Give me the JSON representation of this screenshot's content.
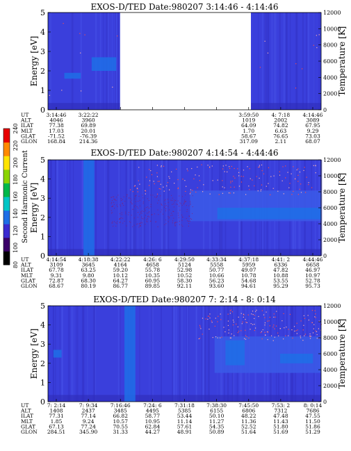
{
  "colorbar": {
    "label": "Second Harmonic Current",
    "ticks": [
      "80",
      "100",
      "120",
      "140",
      "160",
      "180",
      "200",
      "220",
      "240"
    ],
    "colors": [
      "#000000",
      "#3a0068",
      "#3b2bd0",
      "#1f6ee6",
      "#00c6c6",
      "#00b84a",
      "#8bd400",
      "#ffe400",
      "#ff8a00",
      "#e80000"
    ]
  },
  "chart_data": [
    {
      "type": "heatmap",
      "title": "EXOS-D/TED   Date:980207  3:14:46 - 4:14:46",
      "ylabel": "Energy [eV]",
      "y2label": "Temperature [K]",
      "ylim": [
        0,
        5
      ],
      "y2lim": [
        0,
        12000
      ],
      "yticks": [
        "0",
        "1",
        "2",
        "3",
        "4",
        "5"
      ],
      "y2ticks": [
        "0",
        "2000",
        "4000",
        "6000",
        "8000",
        "10000",
        "12000"
      ],
      "data_gaps": [
        [
          0.264,
          0.743
        ]
      ],
      "bands": [
        {
          "x0": 0.16,
          "x1": 0.25,
          "y0": 2.0,
          "y1": 2.7,
          "color": "#1f6ee6"
        },
        {
          "x0": 0.06,
          "x1": 0.12,
          "y0": 1.6,
          "y1": 1.9,
          "color": "#1f6ee6"
        }
      ],
      "table_rows": [
        {
          "label": "UT",
          "cells": [
            "3:14:46",
            "3:22:22",
            "",
            "",
            "",
            "",
            "3:59:50",
            "4: 7:18",
            "4:14:46"
          ]
        },
        {
          "label": "ALT",
          "cells": [
            "4046",
            "3960",
            "",
            "",
            "",
            "",
            "1019",
            "2002",
            "3089"
          ]
        },
        {
          "label": "ILAT",
          "cells": [
            "77.38",
            "69.89",
            "",
            "",
            "",
            "",
            "64.09",
            "74.82",
            "67.95"
          ]
        },
        {
          "label": "MLT",
          "cells": [
            "17.03",
            "20.01",
            "",
            "",
            "",
            "",
            "1.70",
            "6.63",
            "9.29"
          ]
        },
        {
          "label": "GLAT",
          "cells": [
            "-71.52",
            "-76.39",
            "",
            "",
            "",
            "",
            "58.67",
            "76.65",
            "73.03"
          ]
        },
        {
          "label": "GLON",
          "cells": [
            "168.84",
            "214.36",
            "",
            "",
            "",
            "",
            "317.09",
            "2.11",
            "68.07"
          ]
        }
      ]
    },
    {
      "type": "heatmap",
      "title": "EXOS-D/TED   Date:980207  4:14:54 - 4:44:46",
      "ylabel": "Energy [eV]",
      "y2label": "Temperature [K]",
      "ylim": [
        0,
        5
      ],
      "y2lim": [
        0,
        12000
      ],
      "yticks": [
        "0",
        "1",
        "2",
        "3",
        "4",
        "5"
      ],
      "y2ticks": [
        "0",
        "2000",
        "4000",
        "6000",
        "8000",
        "10000",
        "12000"
      ],
      "data_gaps": [],
      "bands": [
        {
          "x0": 0.13,
          "x1": 0.17,
          "y0": 0,
          "y1": 5,
          "color": "#1f6ee6"
        },
        {
          "x0": 0.52,
          "x1": 1.0,
          "y0": 1.8,
          "y1": 3.4,
          "color": "#3b5be8"
        },
        {
          "x0": 0.62,
          "x1": 1.0,
          "y0": 1.9,
          "y1": 2.5,
          "color": "#1f6ee6"
        }
      ],
      "table_rows": [
        {
          "label": "UT",
          "cells": [
            "4:14:54",
            "4:18:38",
            "4:22:22",
            "4:26: 6",
            "4:29:50",
            "4:33:34",
            "4:37:18",
            "4:41: 2",
            "4:44:46"
          ]
        },
        {
          "label": "ALT",
          "cells": [
            "3109",
            "3645",
            "4164",
            "4658",
            "5124",
            "5558",
            "5959",
            "6336",
            "6658"
          ]
        },
        {
          "label": "ILAT",
          "cells": [
            "67.78",
            "63.25",
            "59.20",
            "55.78",
            "52.98",
            "50.77",
            "49.07",
            "47.82",
            "46.97"
          ]
        },
        {
          "label": "MLT",
          "cells": [
            "9.31",
            "9.80",
            "10.12",
            "10.35",
            "10.52",
            "10.66",
            "10.78",
            "10.88",
            "10.97"
          ]
        },
        {
          "label": "GLAT",
          "cells": [
            "72.87",
            "68.30",
            "64.27",
            "60.95",
            "58.30",
            "56.23",
            "54.68",
            "53.55",
            "52.78"
          ]
        },
        {
          "label": "GLON",
          "cells": [
            "68.67",
            "80.19",
            "86.77",
            "89.85",
            "92.11",
            "93.60",
            "94.61",
            "95.29",
            "95.73"
          ]
        }
      ]
    },
    {
      "type": "heatmap",
      "title": "EXOS-D/TED   Date:980207  7: 2:14 - 8: 0:14",
      "ylabel": "Energy [eV]",
      "y2label": "Temperature [K]",
      "ylim": [
        0,
        5
      ],
      "y2lim": [
        0,
        12000
      ],
      "yticks": [
        "0",
        "1",
        "2",
        "3",
        "4",
        "5"
      ],
      "y2ticks": [
        "0",
        "2000",
        "4000",
        "6000",
        "8000",
        "10000",
        "12000"
      ],
      "data_gaps": [],
      "bands": [
        {
          "x0": 0.28,
          "x1": 0.32,
          "y0": 0,
          "y1": 5,
          "color": "#1f6ee6"
        },
        {
          "x0": 0.02,
          "x1": 0.05,
          "y0": 2.3,
          "y1": 2.7,
          "color": "#1f6ee6"
        },
        {
          "x0": 0.61,
          "x1": 1.0,
          "y0": 1.5,
          "y1": 3.4,
          "color": "#3b5be8"
        },
        {
          "x0": 0.65,
          "x1": 0.72,
          "y0": 1.9,
          "y1": 3.2,
          "color": "#1f6ee6"
        },
        {
          "x0": 0.85,
          "x1": 0.97,
          "y0": 2.0,
          "y1": 2.5,
          "color": "#1f6ee6"
        }
      ],
      "table_rows": [
        {
          "label": "UT",
          "cells": [
            "7: 2:14",
            "7: 9:34",
            "7:16:46",
            "7:24: 6",
            "7:31:18",
            "7:38:30",
            "7:45:50",
            "7:53: 2",
            "8: 0:14"
          ]
        },
        {
          "label": "ALT",
          "cells": [
            "1408",
            "2437",
            "3485",
            "4495",
            "5385",
            "6155",
            "6806",
            "7312",
            "7686"
          ]
        },
        {
          "label": "ILAT",
          "cells": [
            "77.31",
            "77.14",
            "66.82",
            "58.77",
            "53.44",
            "50.10",
            "48.22",
            "47.48",
            "47.55"
          ]
        },
        {
          "label": "MLT",
          "cells": [
            "1.85",
            "9.24",
            "10.57",
            "10.95",
            "11.14",
            "11.27",
            "11.36",
            "11.43",
            "11.50"
          ]
        },
        {
          "label": "GLAT",
          "cells": [
            "67.13",
            "77.24",
            "70.55",
            "62.84",
            "57.61",
            "54.35",
            "52.52",
            "51.80",
            "51.86"
          ]
        },
        {
          "label": "GLON",
          "cells": [
            "284.51",
            "345.90",
            "31.33",
            "44.27",
            "48.91",
            "50.89",
            "51.64",
            "51.69",
            "51.29"
          ]
        }
      ]
    }
  ]
}
